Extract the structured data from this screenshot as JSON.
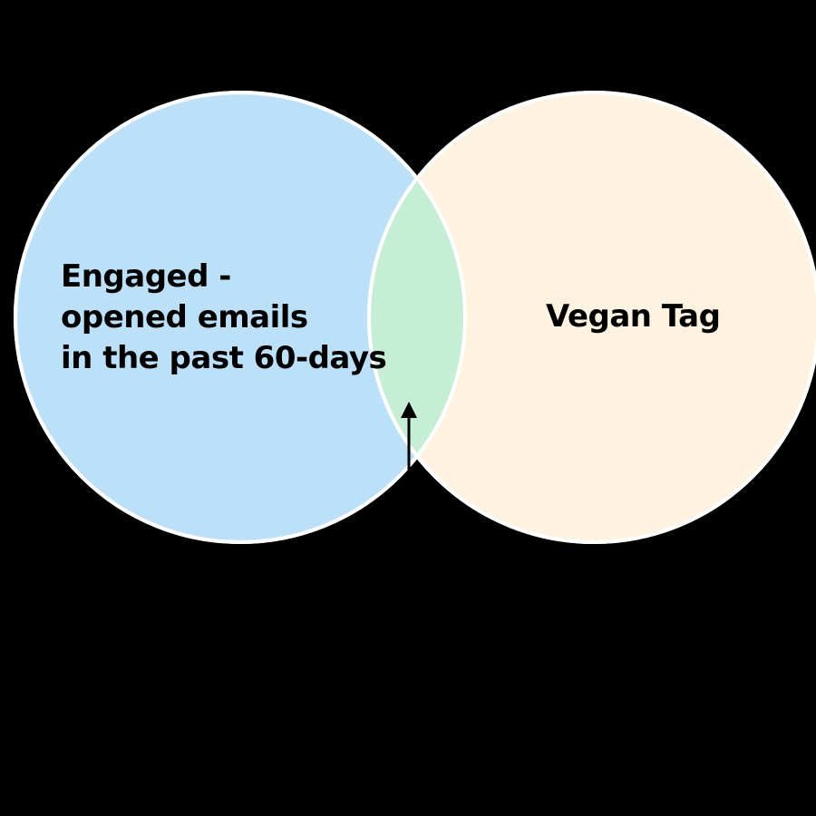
{
  "diagram": {
    "type": "venn",
    "sets": [
      {
        "id": "left",
        "label_lines": [
          "Engaged -",
          "opened emails",
          "in the past 60-days"
        ],
        "fill": "#BDE0F9"
      },
      {
        "id": "right",
        "label_lines": [
          "Vegan Tag"
        ],
        "fill": "#FEF3E1"
      }
    ],
    "intersection": {
      "fill": "#C6EED7",
      "has_pointer_arrow": true
    },
    "colors": {
      "background": "#000000",
      "outline": "#FFFFFF",
      "text": "#000000",
      "arrow": "#000000"
    }
  }
}
